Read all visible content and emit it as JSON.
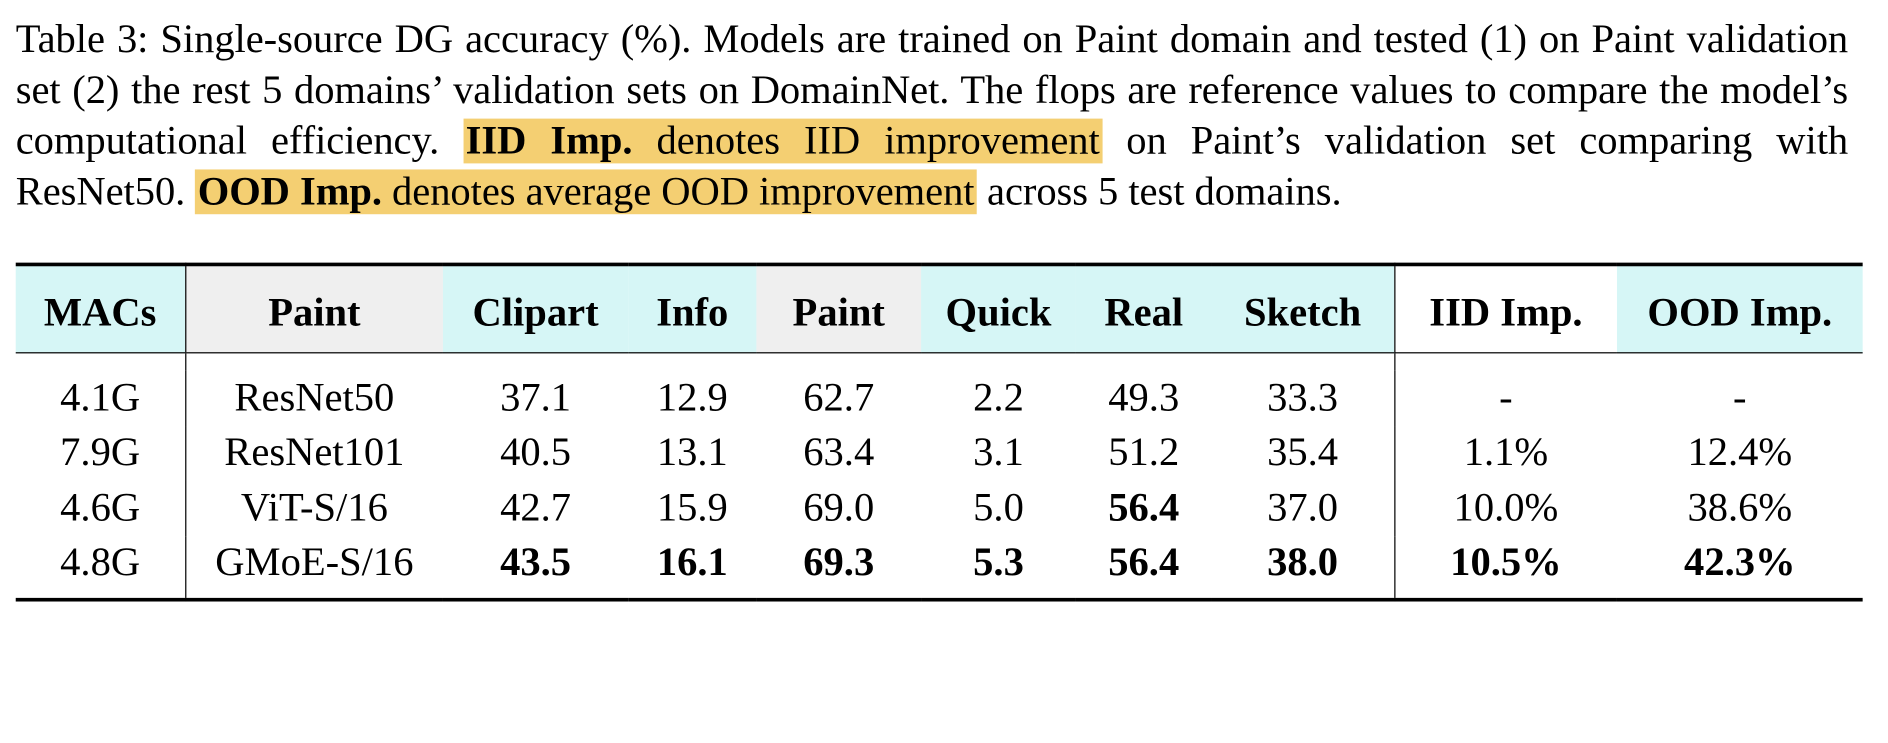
{
  "caption": {
    "part1": "Table 3: Single-source DG accuracy (%). Models are trained on Paint domain and tested (1) on Paint validation set (2) the rest 5 domains’ validation sets on DomainNet. The flops are reference values to compare the model’s computational efficiency.",
    "iid_term": "IID Imp.",
    "iid_desc": "denotes IID improvement",
    "part2": "on Paint’s validation set comparing with ResNet50.",
    "ood_term": "OOD Imp.",
    "ood_desc": "denotes average OOD improvement",
    "part3": "across 5 test domains."
  },
  "table": {
    "headers": [
      "MACs",
      "Paint",
      "Clipart",
      "Info",
      "Paint",
      "Quick",
      "Real",
      "Sketch",
      "IID Imp.",
      "OOD Imp."
    ],
    "rows": [
      [
        "4.1G",
        "ResNet50",
        "37.1",
        "12.9",
        "62.7",
        "2.2",
        "49.3",
        "33.3",
        "-",
        "-"
      ],
      [
        "7.9G",
        "ResNet101",
        "40.5",
        "13.1",
        "63.4",
        "3.1",
        "51.2",
        "35.4",
        "1.1%",
        "12.4%"
      ],
      [
        "4.6G",
        "ViT-S/16",
        "42.7",
        "15.9",
        "69.0",
        "5.0",
        "56.4",
        "37.0",
        "10.0%",
        "38.6%"
      ],
      [
        "4.8G",
        "GMoE-S/16",
        "43.5",
        "16.1",
        "69.3",
        "5.3",
        "56.4",
        "38.0",
        "10.5%",
        "42.3%"
      ]
    ]
  },
  "colors": {
    "highlight": "#f4cf72",
    "header_cyan": "#d6f6f6",
    "header_grey": "#efefef"
  }
}
